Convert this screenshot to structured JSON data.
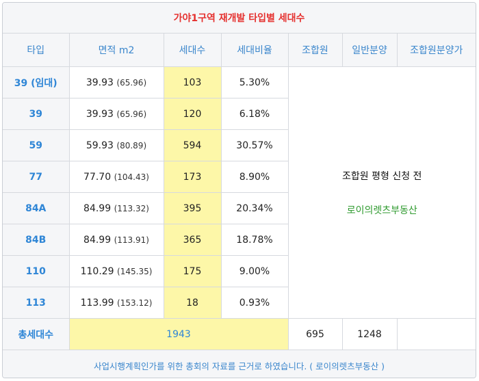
{
  "title": "가야1구역 재개발 타입별 세대수",
  "headers": [
    "타입",
    "면적 m2",
    "세대수",
    "세대비율",
    "조합원",
    "일반분양",
    "조합원분양가"
  ],
  "rows": [
    {
      "type": "39 (임대)",
      "area": "39.93",
      "area_sub": "(65.96)",
      "count": "103",
      "ratio": "5.30%"
    },
    {
      "type": "39",
      "area": "39.93",
      "area_sub": "(65.96)",
      "count": "120",
      "ratio": "6.18%"
    },
    {
      "type": "59",
      "area": "59.93",
      "area_sub": "(80.89)",
      "count": "594",
      "ratio": "30.57%"
    },
    {
      "type": "77",
      "area": "77.70",
      "area_sub": "(104.43)",
      "count": "173",
      "ratio": "8.90%"
    },
    {
      "type": "84A",
      "area": "84.99",
      "area_sub": "(113.32)",
      "count": "395",
      "ratio": "20.34%"
    },
    {
      "type": "84B",
      "area": "84.99",
      "area_sub": "(113.91)",
      "count": "365",
      "ratio": "18.78%"
    },
    {
      "type": "110",
      "area": "110.29",
      "area_sub": "(145.35)",
      "count": "175",
      "ratio": "9.00%"
    },
    {
      "type": "113",
      "area": "113.99",
      "area_sub": "(153.12)",
      "count": "18",
      "ratio": "0.93%"
    }
  ],
  "merged_note": "조합원 평형 신청 전",
  "merged_brand": "로이의렛츠부동산",
  "total": {
    "label": "총세대수",
    "sum": "1943",
    "members": "695",
    "general": "1248",
    "price": ""
  },
  "footer": "사업시행계획인가를 위한 총회의 자료를 근거로 하였습니다. ( 로이의렛츠부동산 )",
  "colors": {
    "title": "#e5312f",
    "accent": "#2f86d6",
    "highlight": "#fdf7a8",
    "brand": "#2e9a2e"
  }
}
